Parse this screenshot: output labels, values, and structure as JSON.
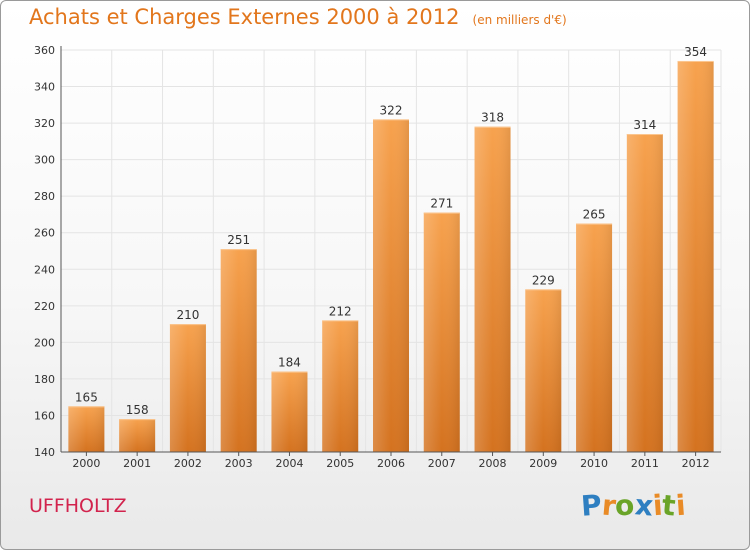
{
  "title": "Achats et Charges Externes 2000 à 2012",
  "subtitle": "(en milliers d'€)",
  "commune": "UFFHOLTZ",
  "logo": {
    "text": "Proxiti",
    "letters": [
      "P",
      "r",
      "o",
      "x",
      "i",
      "t",
      "i"
    ],
    "colors": [
      "#2e7fc1",
      "#e98b27",
      "#6aa428",
      "#2e7fc1",
      "#e98b27",
      "#6aa428",
      "#e98b27"
    ]
  },
  "colors": {
    "accent": "#e2761c",
    "commune": "#d2234d",
    "bar_light": "#f7a24e",
    "bar_dark": "#d4721f",
    "grid": "#e4e4e4",
    "axis_text": "#333333"
  },
  "chart_data": {
    "type": "bar",
    "categories": [
      "2000",
      "2001",
      "2002",
      "2003",
      "2004",
      "2005",
      "2006",
      "2007",
      "2008",
      "2009",
      "2010",
      "2011",
      "2012"
    ],
    "values": [
      165,
      158,
      210,
      251,
      184,
      212,
      322,
      271,
      318,
      229,
      265,
      314,
      354
    ],
    "ylim": [
      140,
      360
    ],
    "yticks": [
      140,
      160,
      180,
      200,
      220,
      240,
      260,
      280,
      300,
      320,
      340,
      360
    ],
    "grid": true,
    "data_labels": true
  }
}
